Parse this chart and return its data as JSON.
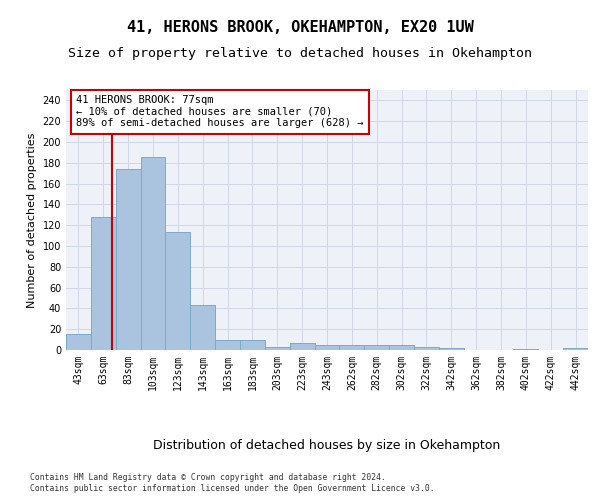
{
  "title": "41, HERONS BROOK, OKEHAMPTON, EX20 1UW",
  "subtitle": "Size of property relative to detached houses in Okehampton",
  "xlabel": "Distribution of detached houses by size in Okehampton",
  "ylabel": "Number of detached properties",
  "footnote1": "Contains HM Land Registry data © Crown copyright and database right 2024.",
  "footnote2": "Contains public sector information licensed under the Open Government Licence v3.0.",
  "bar_labels": [
    "43sqm",
    "63sqm",
    "83sqm",
    "103sqm",
    "123sqm",
    "143sqm",
    "163sqm",
    "183sqm",
    "203sqm",
    "223sqm",
    "243sqm",
    "262sqm",
    "282sqm",
    "302sqm",
    "322sqm",
    "342sqm",
    "362sqm",
    "382sqm",
    "402sqm",
    "422sqm",
    "442sqm"
  ],
  "bar_values": [
    15,
    128,
    174,
    186,
    113,
    43,
    10,
    10,
    3,
    7,
    5,
    5,
    5,
    5,
    3,
    2,
    0,
    0,
    1,
    0,
    2
  ],
  "bar_color": "#aac4e0",
  "bar_edge_color": "#7aaaca",
  "property_line_x": 1.35,
  "annotation_text_line1": "41 HERONS BROOK: 77sqm",
  "annotation_text_line2": "← 10% of detached houses are smaller (70)",
  "annotation_text_line3": "89% of semi-detached houses are larger (628) →",
  "annotation_box_color": "#ffffff",
  "annotation_box_edge_color": "#cc0000",
  "vline_color": "#cc0000",
  "ylim": [
    0,
    250
  ],
  "yticks": [
    0,
    20,
    40,
    60,
    80,
    100,
    120,
    140,
    160,
    180,
    200,
    220,
    240
  ],
  "grid_color": "#d0d8e8",
  "bg_color": "#eef2f8",
  "title_fontsize": 11,
  "subtitle_fontsize": 9.5,
  "xlabel_fontsize": 9,
  "ylabel_fontsize": 8,
  "tick_fontsize": 7,
  "annotation_fontsize": 7.5,
  "footnote_fontsize": 5.8
}
